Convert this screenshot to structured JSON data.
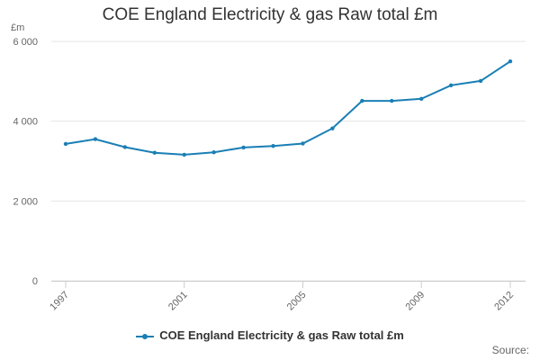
{
  "chart_data": {
    "type": "line",
    "title": "COE England Electricity & gas Raw total £m",
    "ylabel": "£m",
    "xlabel": "",
    "x": [
      1997,
      1998,
      1999,
      2000,
      2001,
      2002,
      2003,
      2004,
      2005,
      2006,
      2007,
      2008,
      2009,
      2010,
      2011,
      2012
    ],
    "x_tick_labels": [
      "1997",
      "2001",
      "2005",
      "2009",
      "2012"
    ],
    "y_tick_labels": [
      "0",
      "2 000",
      "4 000",
      "6 000"
    ],
    "y_ticks": [
      0,
      2000,
      4000,
      6000
    ],
    "ylim": [
      0,
      6000
    ],
    "xlim": [
      1997,
      2012
    ],
    "grid": true,
    "legend_position": "bottom-center",
    "series": [
      {
        "name": "COE England Electricity & gas Raw total £m",
        "color": "#1a7fb5",
        "values": [
          3430,
          3550,
          3350,
          3210,
          3160,
          3220,
          3340,
          3380,
          3440,
          3820,
          4510,
          4510,
          4560,
          4900,
          5010,
          5500
        ]
      }
    ],
    "source_label": "Source:"
  }
}
